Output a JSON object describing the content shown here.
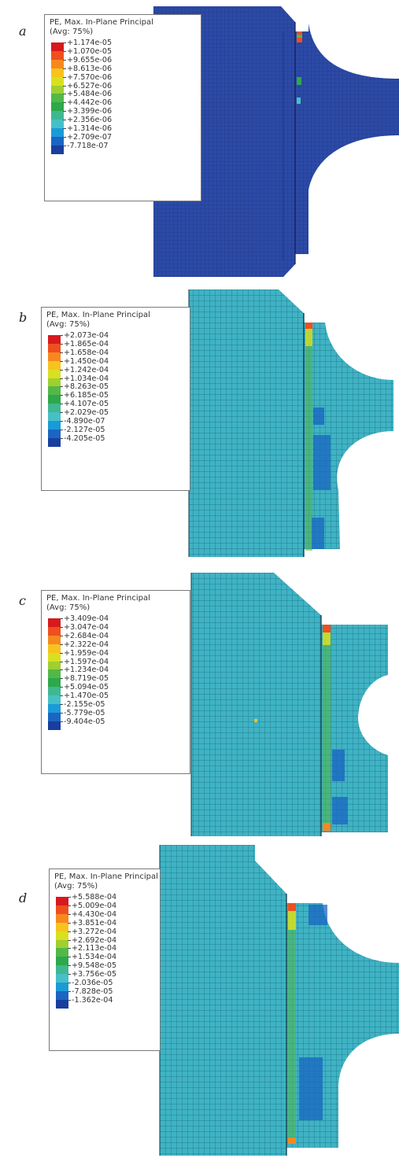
{
  "palette": [
    "#d7191c",
    "#ef4f1e",
    "#f7881e",
    "#f7c31e",
    "#d9e020",
    "#9fcf30",
    "#52b848",
    "#2da84b",
    "#3fb890",
    "#46c0c7",
    "#1a9bd7",
    "#1a66c2",
    "#1a3e9e"
  ],
  "panels": [
    {
      "label": "a",
      "legend_title_1": "PE, Max. In-Plane Principal",
      "legend_title_2": "(Avg: 75%)",
      "ticks": [
        "+1.174e-05",
        "+1.070e-05",
        "+9.655e-06",
        "+8.613e-06",
        "+7.570e-06",
        "+6.527e-06",
        "+5.484e-06",
        "+4.442e-06",
        "+3.399e-06",
        "+2.356e-06",
        "+1.314e-06",
        "+2.709e-07",
        "-7.718e-07"
      ],
      "mesh_color": "#2c4aa6"
    },
    {
      "label": "b",
      "legend_title_1": "PE, Max. In-Plane Principal",
      "legend_title_2": "(Avg: 75%)",
      "ticks": [
        "+2.073e-04",
        "+1.865e-04",
        "+1.658e-04",
        "+1.450e-04",
        "+1.242e-04",
        "+1.034e-04",
        "+8.263e-05",
        "+6.185e-05",
        "+4.107e-05",
        "+2.029e-05",
        "-4.890e-07",
        "-2.127e-05",
        "-4.205e-05"
      ],
      "mesh_color": "#3fb3c4"
    },
    {
      "label": "c",
      "legend_title_1": "PE, Max. In-Plane Principal",
      "legend_title_2": "(Avg: 75%)",
      "ticks": [
        "+3.409e-04",
        "+3.047e-04",
        "+2.684e-04",
        "+2.322e-04",
        "+1.959e-04",
        "+1.597e-04",
        "+1.234e-04",
        "+8.719e-05",
        "+5.094e-05",
        "+1.470e-05",
        "-2.155e-05",
        "-5.779e-05",
        "-9.404e-05"
      ],
      "mesh_color": "#3fb3c4"
    },
    {
      "label": "d",
      "legend_title_1": "PE, Max. In-Plane Principal",
      "legend_title_2": "(Avg: 75%)",
      "ticks": [
        "+5.588e-04",
        "+5.009e-04",
        "+4.430e-04",
        "+3.851e-04",
        "+3.272e-04",
        "+2.692e-04",
        "+2.113e-04",
        "+1.534e-04",
        "+9.548e-05",
        "+3.756e-05",
        "-2.036e-05",
        "-7.828e-05",
        "-1.362e-04"
      ],
      "mesh_color": "#3fb3c4"
    }
  ]
}
